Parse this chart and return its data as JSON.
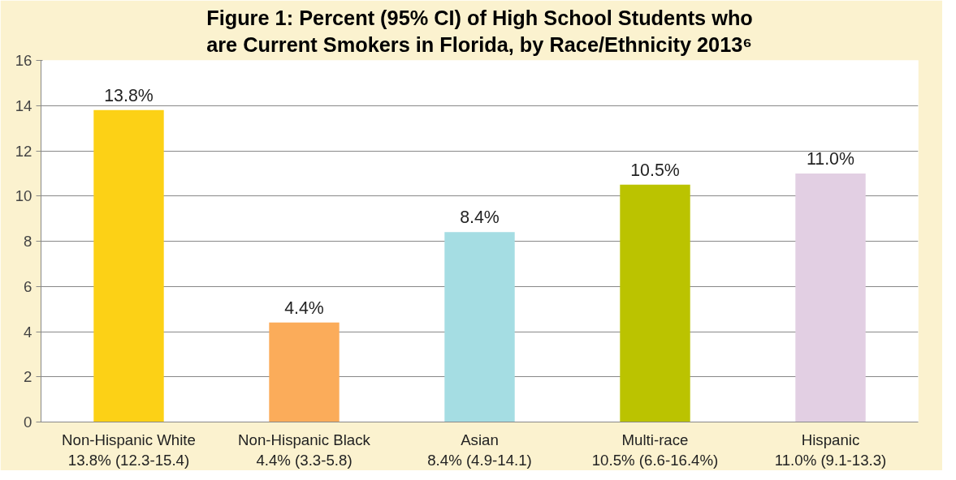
{
  "chart_data": {
    "type": "bar",
    "title": "Figure 1: Percent (95% CI) of High School Students who are Current Smokers in Florida, by Race/Ethnicity 2013⁶",
    "categories": [
      "Non-Hispanic White\n13.8% (12.3-15.4)",
      "Non-Hispanic Black\n4.4% (3.3-5.8)",
      "Asian\n8.4% (4.9-14.1)",
      "Multi-race\n10.5% (6.6-16.4%)",
      "Hispanic\n11.0% (9.1-13.3)"
    ],
    "values": [
      13.8,
      4.4,
      8.4,
      10.5,
      11.0
    ],
    "colors": [
      "#fcd116",
      "#fbac5a",
      "#a5dde3",
      "#bbc300",
      "#e2cfe3"
    ],
    "value_labels": [
      "13.8%",
      "4.4%",
      "8.4%",
      "10.5%",
      "11.0%"
    ],
    "ylim": [
      0,
      16
    ],
    "yticks": [
      0,
      2,
      4,
      6,
      8,
      10,
      12,
      14,
      16
    ],
    "grid": "y"
  }
}
